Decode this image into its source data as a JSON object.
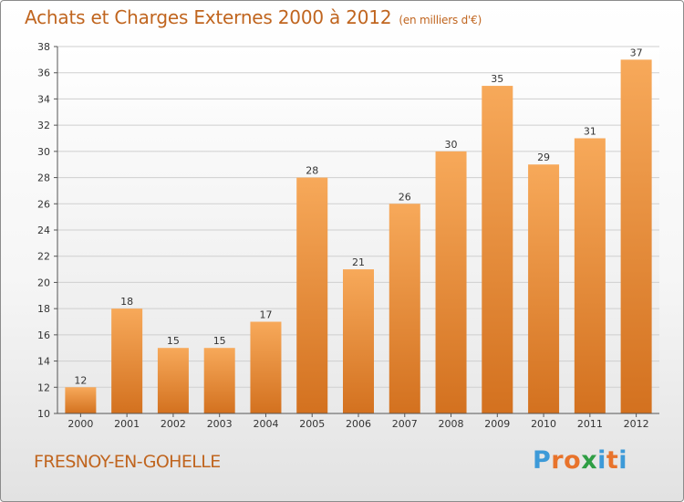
{
  "header": {
    "title": "Achats et Charges Externes 2000 à 2012",
    "subtitle": "(en milliers d'€)"
  },
  "footer": {
    "commune": "FRESNOY-EN-GOHELLE",
    "brand": "Proxiti"
  },
  "colors": {
    "accent": "#c0651f",
    "bar_top": "#f7a95a",
    "bar_bottom": "#d3711f",
    "brand_letters": [
      "#3d9ad8",
      "#e8732b",
      "#e8732b",
      "#2f9e44",
      "#3d9ad8",
      "#e8732b",
      "#3d9ad8"
    ]
  },
  "chart_data": {
    "type": "bar",
    "categories": [
      "2000",
      "2001",
      "2002",
      "2003",
      "2004",
      "2005",
      "2006",
      "2007",
      "2008",
      "2009",
      "2010",
      "2011",
      "2012"
    ],
    "values": [
      12,
      18,
      15,
      15,
      17,
      28,
      21,
      26,
      30,
      35,
      29,
      31,
      37
    ],
    "ylim": [
      10,
      38
    ],
    "yticks": [
      10,
      12,
      14,
      16,
      18,
      20,
      22,
      24,
      26,
      28,
      30,
      32,
      34,
      36,
      38
    ],
    "grid": true,
    "data_labels": true
  }
}
